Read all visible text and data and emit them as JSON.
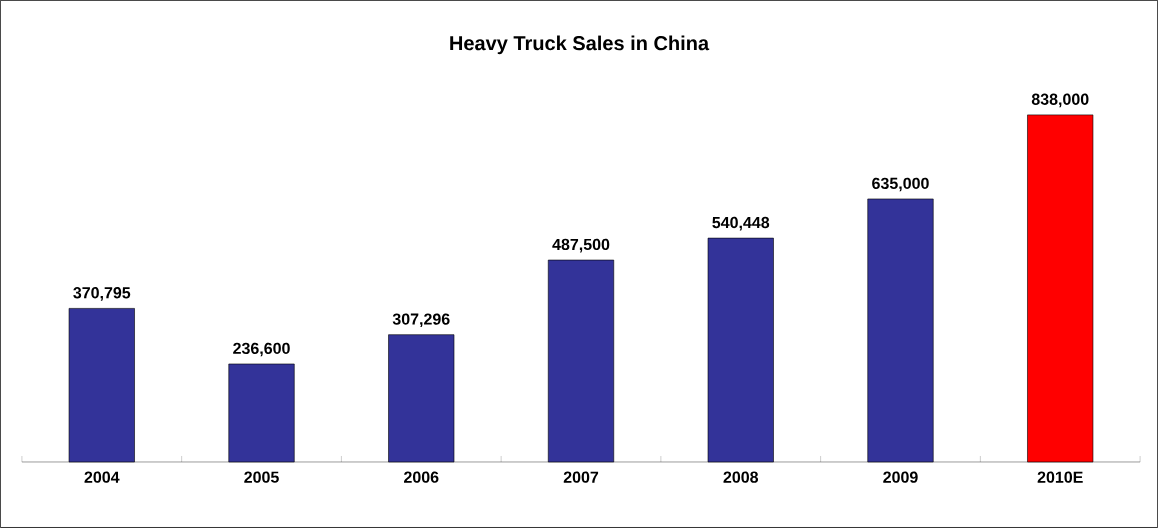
{
  "chart_data": {
    "type": "bar",
    "title": "Heavy Truck Sales in China",
    "categories": [
      "2004",
      "2005",
      "2006",
      "2007",
      "2008",
      "2009",
      "2010E"
    ],
    "values": [
      370795,
      236600,
      307296,
      487500,
      540448,
      635000,
      838000
    ],
    "colors": [
      "#333399",
      "#333399",
      "#333399",
      "#333399",
      "#333399",
      "#333399",
      "#ff0000"
    ],
    "value_labels": [
      "370,795",
      "236,600",
      "307,296",
      "487,500",
      "540,448",
      "635,000",
      "838,000"
    ]
  }
}
